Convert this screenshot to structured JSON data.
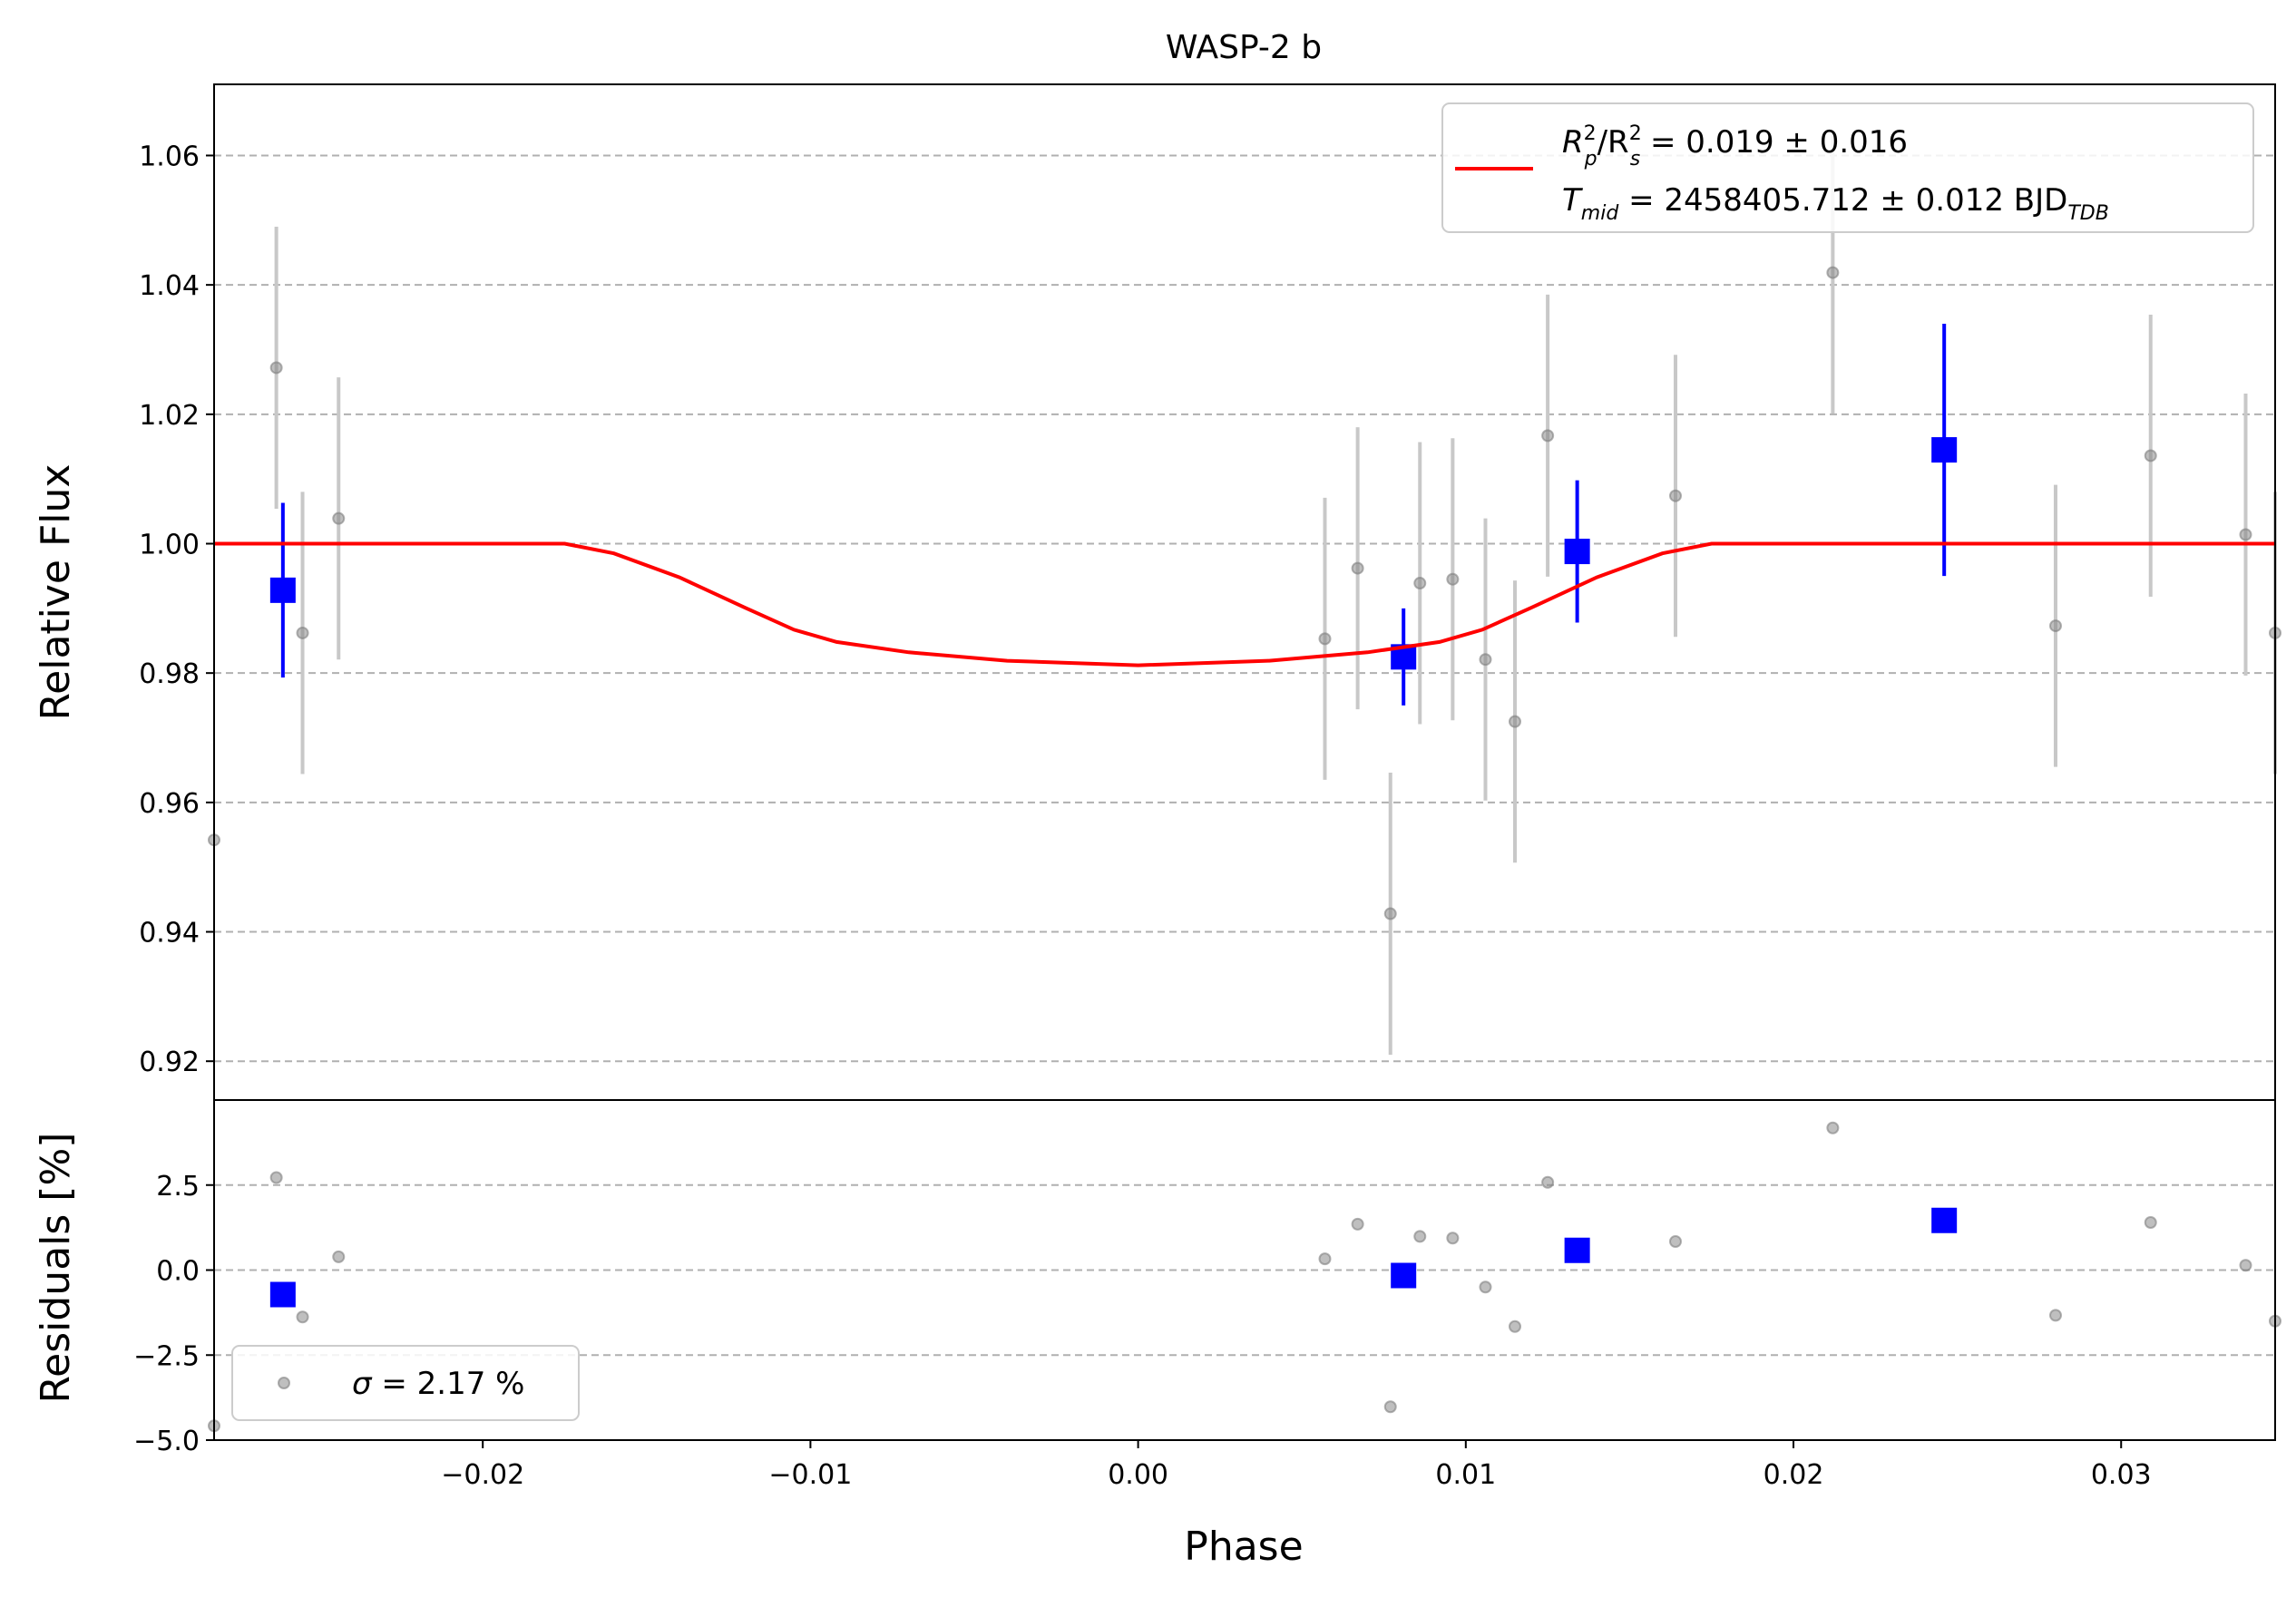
{
  "chart_data": {
    "type": "scatter",
    "title": "WASP-2 b",
    "xlabel": "Phase",
    "xlim": [
      -0.0282,
      0.0347
    ],
    "xticks": [
      -0.02,
      -0.01,
      0.0,
      0.01,
      0.02,
      0.03
    ],
    "xtick_labels": [
      "−0.02",
      "−0.01",
      "0.00",
      "0.01",
      "0.02",
      "0.03"
    ],
    "grid": "horizontal dashed",
    "panels": [
      {
        "name": "flux",
        "ylabel": "Relative Flux",
        "ylim": [
          0.914,
          1.071
        ],
        "yticks": [
          0.92,
          0.94,
          0.96,
          0.98,
          1.0,
          1.02,
          1.04,
          1.06
        ],
        "ytick_labels": [
          "0.92",
          "0.94",
          "0.96",
          "0.98",
          "1.00",
          "1.02",
          "1.04",
          "1.06"
        ],
        "legend_placement": "top-right",
        "legend": {
          "line1": {
            "pre": "R",
            "sub1": "p",
            "sup1": "2",
            "mid": "/R",
            "sub2": "s",
            "sup2": "2",
            "post": " = 0.019 ± 0.016"
          },
          "line2": {
            "pre": "T",
            "sub1": "mid",
            "post": " = 2458405.712 ± 0.012 BJD",
            "sub2": "TDB"
          }
        },
        "series": [
          {
            "kind": "data",
            "color": "#808080",
            "points": [
              {
                "x": -0.0282,
                "y": 0.9542,
                "err": 0.0
              },
              {
                "x": -0.0263,
                "y": 1.0272,
                "err": 0.0218
              },
              {
                "x": -0.0255,
                "y": 0.9862,
                "err": 0.0218
              },
              {
                "x": -0.0244,
                "y": 1.0039,
                "err": 0.0218
              },
              {
                "x": 0.0057,
                "y": 0.9853,
                "err": 0.0218
              },
              {
                "x": 0.0067,
                "y": 0.9962,
                "err": 0.0218
              },
              {
                "x": 0.0077,
                "y": 0.9428,
                "err": 0.0218
              },
              {
                "x": 0.0086,
                "y": 0.9939,
                "err": 0.0218
              },
              {
                "x": 0.0096,
                "y": 0.9945,
                "err": 0.0218
              },
              {
                "x": 0.0106,
                "y": 0.9821,
                "err": 0.0218
              },
              {
                "x": 0.0115,
                "y": 0.9725,
                "err": 0.0218
              },
              {
                "x": 0.0125,
                "y": 1.0167,
                "err": 0.0218
              },
              {
                "x": 0.0164,
                "y": 1.0074,
                "err": 0.0218
              },
              {
                "x": 0.0212,
                "y": 1.0419,
                "err": 0.0218
              },
              {
                "x": 0.028,
                "y": 0.9873,
                "err": 0.0218
              },
              {
                "x": 0.0309,
                "y": 1.0136,
                "err": 0.0218
              },
              {
                "x": 0.0338,
                "y": 1.0014,
                "err": 0.0218
              },
              {
                "x": 0.0347,
                "y": 0.9862,
                "err": 0.0218
              }
            ]
          },
          {
            "kind": "binned",
            "color": "#0000ff",
            "points": [
              {
                "x": -0.0261,
                "y": 0.9928,
                "err": 0.0135
              },
              {
                "x": 0.0081,
                "y": 0.9825,
                "err": 0.0075
              },
              {
                "x": 0.0134,
                "y": 0.9988,
                "err": 0.011
              },
              {
                "x": 0.0246,
                "y": 1.0145,
                "err": 0.0195
              }
            ]
          },
          {
            "kind": "model",
            "color": "#ff0000",
            "x": [
              -0.0282,
              -0.0175,
              -0.016,
              -0.014,
              -0.012,
              -0.0105,
              -0.0092,
              -0.007,
              -0.004,
              0.0,
              0.004,
              0.007,
              0.0092,
              0.0105,
              0.012,
              0.014,
              0.016,
              0.0175,
              0.0347
            ],
            "y": [
              1.0,
              1.0,
              0.9985,
              0.9948,
              0.9901,
              0.9867,
              0.9848,
              0.9832,
              0.9819,
              0.9812,
              0.9819,
              0.9832,
              0.9848,
              0.9867,
              0.9901,
              0.9948,
              0.9985,
              1.0,
              1.0
            ]
          }
        ]
      },
      {
        "name": "residuals",
        "ylabel": "Residuals [%]",
        "ylim": [
          -5.0,
          5.0
        ],
        "yticks": [
          -5.0,
          -2.5,
          0.0,
          2.5
        ],
        "ytick_labels": [
          "−5.0",
          "−2.5",
          "0.0",
          "2.5"
        ],
        "legend_placement": "bottom-left",
        "legend": {
          "sigma": "σ",
          "text": " = 2.17 %"
        },
        "series": [
          {
            "kind": "data",
            "color": "#808080",
            "points": [
              {
                "x": -0.0282,
                "y": -4.58
              },
              {
                "x": -0.0263,
                "y": 2.72
              },
              {
                "x": -0.0255,
                "y": -1.38
              },
              {
                "x": -0.0244,
                "y": 0.39
              },
              {
                "x": 0.0057,
                "y": 0.33
              },
              {
                "x": 0.0067,
                "y": 1.35
              },
              {
                "x": 0.0077,
                "y": -4.02
              },
              {
                "x": 0.0086,
                "y": 0.99
              },
              {
                "x": 0.0096,
                "y": 0.94
              },
              {
                "x": 0.0106,
                "y": -0.5
              },
              {
                "x": 0.0115,
                "y": -1.66
              },
              {
                "x": 0.0125,
                "y": 2.58
              },
              {
                "x": 0.0164,
                "y": 0.84
              },
              {
                "x": 0.0212,
                "y": 4.18
              },
              {
                "x": 0.028,
                "y": -1.33
              },
              {
                "x": 0.0309,
                "y": 1.4
              },
              {
                "x": 0.0338,
                "y": 0.14
              },
              {
                "x": 0.0347,
                "y": -1.5
              }
            ]
          },
          {
            "kind": "binned",
            "color": "#0000ff",
            "points": [
              {
                "x": -0.0261,
                "y": -0.72
              },
              {
                "x": 0.0081,
                "y": -0.16
              },
              {
                "x": 0.0134,
                "y": 0.58
              },
              {
                "x": 0.0246,
                "y": 1.46
              }
            ]
          }
        ]
      }
    ]
  }
}
